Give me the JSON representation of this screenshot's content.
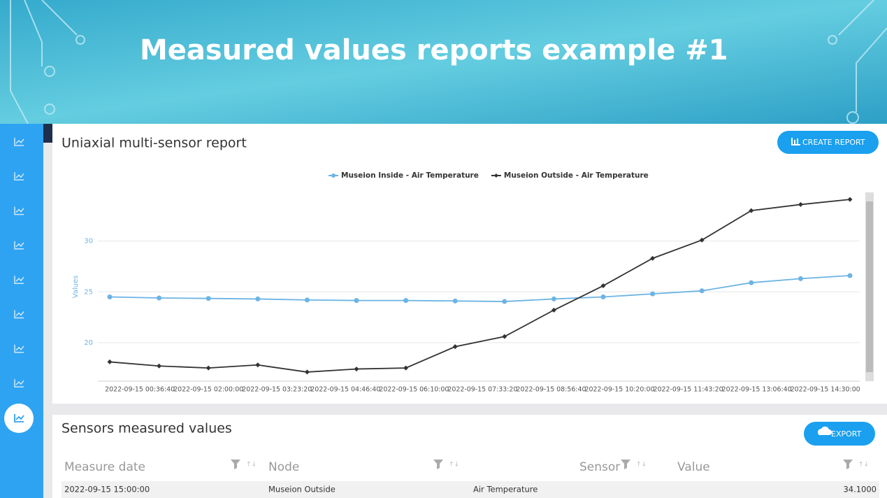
{
  "header": {
    "title": "Measured values reports example #1"
  },
  "report": {
    "title": "Uniaxial multi-sensor report",
    "button": "CREATE REPORT"
  },
  "chart_data": {
    "type": "line",
    "ylabel": "Values",
    "x": [
      "2022-09-15 00:00:00",
      "2022-09-15 01:00:00",
      "2022-09-15 02:00:00",
      "2022-09-15 03:00:00",
      "2022-09-15 04:00:00",
      "2022-09-15 05:00:00",
      "2022-09-15 06:00:00",
      "2022-09-15 07:00:00",
      "2022-09-15 08:00:00",
      "2022-09-15 09:00:00",
      "2022-09-15 10:00:00",
      "2022-09-15 11:00:00",
      "2022-09-15 12:00:00",
      "2022-09-15 13:00:00",
      "2022-09-15 14:00:00",
      "2022-09-15 15:00:00"
    ],
    "series": [
      {
        "name": "Museion Inside - Air Temperature",
        "color": "#6cb4e4",
        "marker": "circle",
        "values": [
          24.5,
          24.4,
          24.35,
          24.3,
          24.2,
          24.15,
          24.15,
          24.1,
          24.05,
          24.3,
          24.5,
          24.8,
          25.1,
          25.9,
          26.3,
          26.6
        ]
      },
      {
        "name": "Museion Outside - Air Temperature",
        "color": "#333333",
        "marker": "diamond",
        "values": [
          18.1,
          17.7,
          17.5,
          17.8,
          17.1,
          17.4,
          17.5,
          19.6,
          20.6,
          23.2,
          25.6,
          28.3,
          30.1,
          33.0,
          33.6,
          34.1
        ]
      }
    ],
    "xlim": [
      "2022-09-15 00:00:00",
      "2022-09-15 15:00:00"
    ],
    "xticks": [
      "2022-09-15 00:36:40",
      "2022-09-15 02:00:00",
      "2022-09-15 03:23:20",
      "2022-09-15 04:46:40",
      "2022-09-15 06:10:00",
      "2022-09-15 07:33:20",
      "2022-09-15 08:56:40",
      "2022-09-15 10:20:00",
      "2022-09-15 11:43:20",
      "2022-09-15 13:06:40",
      "2022-09-15 14:30:00"
    ],
    "ylim": [
      16.2,
      34.8
    ],
    "yticks": [
      20,
      25,
      30
    ],
    "grid": true,
    "legend": "top"
  },
  "table_section": {
    "title": "Sensors measured values",
    "button": "EXPORT"
  },
  "table": {
    "headers": [
      "Measure date",
      "Node",
      "Sensor",
      "Value"
    ],
    "rows": [
      [
        "2022-09-15 15:00:00",
        "Museion Outside",
        "Air Temperature",
        "34.1000"
      ]
    ]
  }
}
